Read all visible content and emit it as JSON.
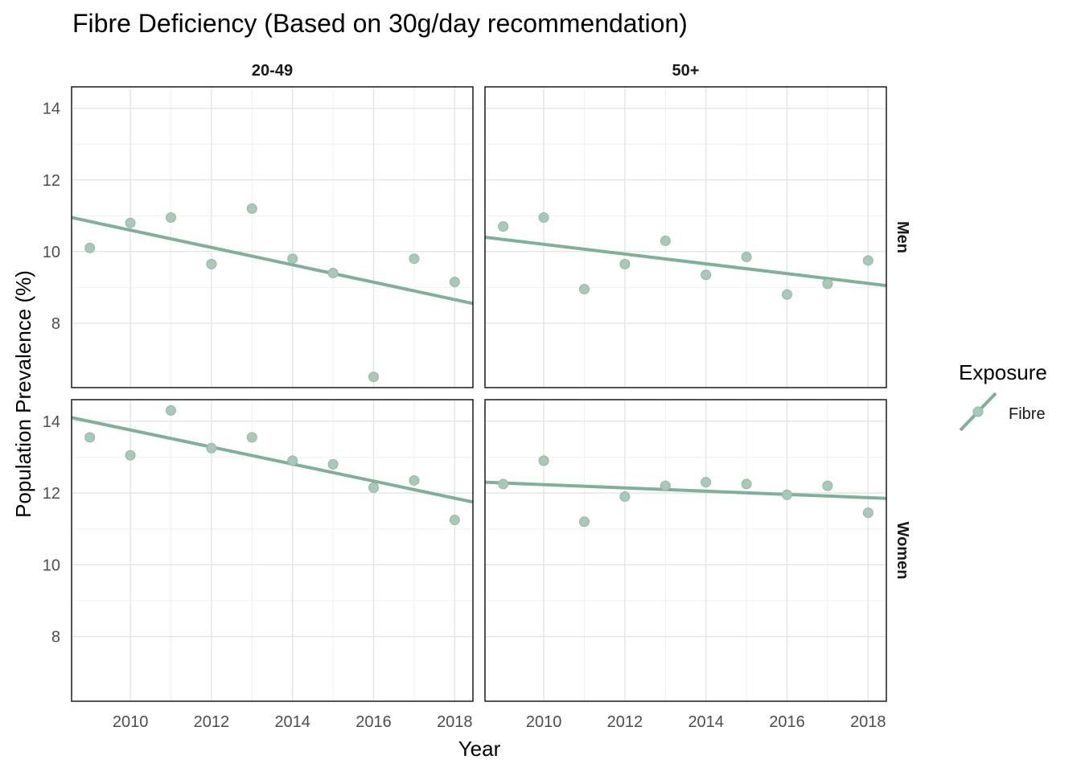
{
  "chart_data": {
    "type": "scatter",
    "title": "Fibre Deficiency (Based on 30g/day recommendation)",
    "xlabel": "Year",
    "ylabel": "Population Prevalence (%)",
    "xlim": [
      2008.55,
      2018.45
    ],
    "ylim": [
      6.2,
      14.6
    ],
    "x_ticks": [
      2010,
      2012,
      2014,
      2016,
      2018
    ],
    "y_ticks": [
      8,
      10,
      12,
      14
    ],
    "grid": true,
    "legend": {
      "title": "Exposure",
      "position": "right",
      "entries": [
        "Fibre"
      ]
    },
    "point_color": "#a8c9b8",
    "line_color": "#7fb09a",
    "col_facets": [
      "20-49",
      "50+"
    ],
    "row_facets": [
      "Men",
      "Women"
    ],
    "panels": [
      {
        "col": "20-49",
        "row": "Men",
        "x": [
          2009,
          2010,
          2011,
          2012,
          2013,
          2014,
          2015,
          2016,
          2017,
          2018
        ],
        "y": [
          10.1,
          10.8,
          10.95,
          9.65,
          11.2,
          9.8,
          9.4,
          6.5,
          9.8,
          9.15
        ],
        "trend": {
          "x": [
            2008.55,
            2018.45
          ],
          "y": [
            10.95,
            8.55
          ]
        }
      },
      {
        "col": "50+",
        "row": "Men",
        "x": [
          2009,
          2010,
          2011,
          2012,
          2013,
          2014,
          2015,
          2016,
          2017,
          2018
        ],
        "y": [
          10.7,
          10.95,
          8.95,
          9.65,
          10.3,
          9.35,
          9.85,
          8.8,
          9.1,
          9.75
        ],
        "trend": {
          "x": [
            2008.55,
            2018.45
          ],
          "y": [
            10.4,
            9.05
          ]
        }
      },
      {
        "col": "20-49",
        "row": "Women",
        "x": [
          2009,
          2010,
          2011,
          2012,
          2013,
          2014,
          2015,
          2016,
          2017,
          2018
        ],
        "y": [
          13.55,
          13.05,
          14.3,
          13.25,
          13.55,
          12.9,
          12.8,
          12.15,
          12.35,
          11.25
        ],
        "trend": {
          "x": [
            2008.55,
            2018.45
          ],
          "y": [
            14.1,
            11.75
          ]
        }
      },
      {
        "col": "50+",
        "row": "Women",
        "x": [
          2009,
          2010,
          2011,
          2012,
          2013,
          2014,
          2015,
          2016,
          2017,
          2018
        ],
        "y": [
          12.25,
          12.9,
          11.2,
          11.9,
          12.2,
          12.3,
          12.25,
          11.95,
          12.2,
          11.45
        ],
        "trend": {
          "x": [
            2008.55,
            2018.45
          ],
          "y": [
            12.3,
            11.85
          ]
        }
      }
    ]
  }
}
